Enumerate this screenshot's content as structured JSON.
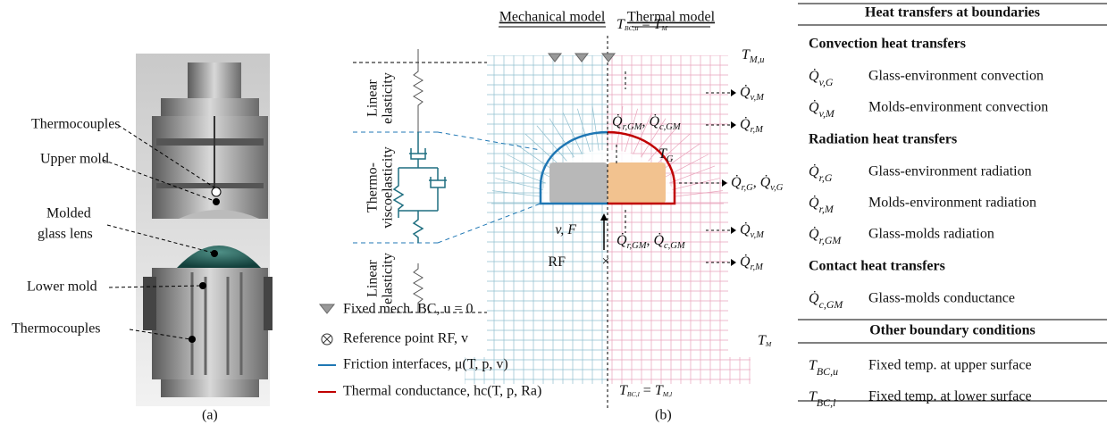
{
  "panel_a": {
    "labels": [
      "Thermocouples",
      "Upper mold",
      "Molded",
      "glass lens",
      "Lower mold",
      "Thermocouples"
    ],
    "caption": "(a)"
  },
  "panel_b": {
    "mechanical_title": "Mechanical model",
    "thermal_title": "Thermal model",
    "model_labels": [
      [
        "Linear",
        "elasticity"
      ],
      [
        "Thermo-",
        "viscoelasticity"
      ],
      [
        "Linear",
        "elasticity"
      ]
    ],
    "labels": [
      [
        {
          "t": "T",
          "sub": "BC,u"
        },
        {
          "t": " = "
        },
        {
          "t": "T",
          "sub": "M"
        }
      ],
      [
        {
          "t": "T",
          "sub": "M,u"
        }
      ],
      [
        {
          "t": "Q̇",
          "sub": "r,GM"
        },
        {
          "t": ", "
        },
        {
          "t": "Q̇",
          "sub": "c,GM"
        }
      ],
      [
        {
          "t": "Q̇",
          "sub": "v,M"
        }
      ],
      [
        {
          "t": "Q̇",
          "sub": "r,M"
        }
      ],
      [
        {
          "t": "T",
          "sub": "G"
        }
      ],
      [
        {
          "t": "Q̇",
          "sub": "r,G"
        },
        {
          "t": ", "
        },
        {
          "t": "Q̇",
          "sub": "v,G"
        }
      ],
      [
        {
          "t": "v, F",
          "italic": true
        }
      ],
      [
        {
          "t": "Q̇",
          "sub": "r,GM"
        },
        {
          "t": ", "
        },
        {
          "t": "Q̇",
          "sub": "c,GM"
        }
      ],
      [
        {
          "t": "Q̇",
          "sub": "v,M"
        }
      ],
      [
        {
          "t": "RF"
        }
      ],
      [
        {
          "t": "Q̇",
          "sub": "r,M"
        }
      ],
      [
        {
          "t": "T",
          "sub": "M"
        }
      ],
      [
        {
          "t": "T",
          "sub": "BC,l"
        },
        {
          "t": " = "
        },
        {
          "t": "T",
          "sub": "M,l"
        }
      ]
    ],
    "legend": [
      "Fixed mech. BC, u = 0",
      "Reference point RF, v",
      "Friction interfaces, μ(T, p, v)",
      "Thermal conductance, hc(T, p, Ra)"
    ],
    "caption": "(b)"
  },
  "table": {
    "title": "Heat transfers at boundaries",
    "sections": [
      {
        "heading": "Convection heat transfers",
        "rows": [
          {
            "symbol": [
              {
                "t": "Q̇",
                "sub": "v,G"
              }
            ],
            "desc": "Glass-environment convection"
          },
          {
            "symbol": [
              {
                "t": "Q̇",
                "sub": "v,M"
              }
            ],
            "desc": "Molds-environment convection"
          }
        ]
      },
      {
        "heading": "Radiation heat transfers",
        "rows": [
          {
            "symbol": [
              {
                "t": "Q̇",
                "sub": "r,G"
              }
            ],
            "desc": "Glass-environment radiation"
          },
          {
            "symbol": [
              {
                "t": "Q̇",
                "sub": "r,M"
              }
            ],
            "desc": "Molds-environment radiation"
          },
          {
            "symbol": [
              {
                "t": "Q̇",
                "sub": "r,GM"
              }
            ],
            "desc": "Glass-molds radiation"
          }
        ]
      },
      {
        "heading": "Contact heat transfers",
        "rows": [
          {
            "symbol": [
              {
                "t": "Q̇",
                "sub": "c,GM"
              }
            ],
            "desc": "Glass-molds conductance"
          }
        ]
      },
      {
        "heading": "Other boundary conditions",
        "rows": [
          {
            "symbol": [
              {
                "t": "T",
                "sub": "BC,u"
              }
            ],
            "desc": "Fixed temp. at upper surface"
          },
          {
            "symbol": [
              {
                "t": "T",
                "sub": "BC,l"
              }
            ],
            "desc": "Fixed temp. at lower surface"
          }
        ]
      }
    ]
  }
}
